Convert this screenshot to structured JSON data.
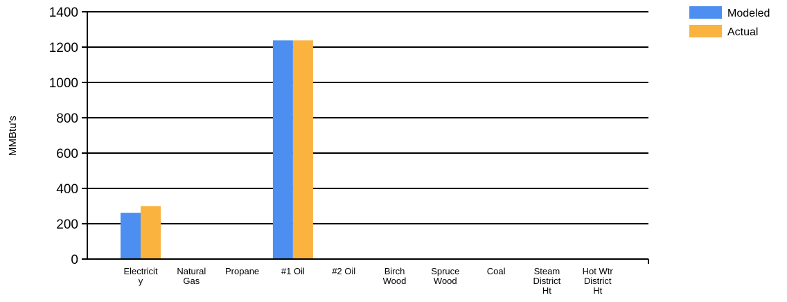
{
  "chart_data": {
    "type": "bar",
    "title": "",
    "xlabel": "",
    "ylabel": "MMBtu's",
    "ylim": [
      0,
      1400
    ],
    "yticks": [
      0,
      200,
      400,
      600,
      800,
      1000,
      1200,
      1400
    ],
    "categories": [
      [
        "Electricit",
        "y"
      ],
      [
        "Natural",
        "Gas"
      ],
      [
        "Propane"
      ],
      [
        "#1 Oil"
      ],
      [
        "#2 Oil"
      ],
      [
        "Birch",
        "Wood"
      ],
      [
        "Spruce",
        "Wood"
      ],
      [
        "Coal"
      ],
      [
        "Steam",
        "District",
        "Ht"
      ],
      [
        "Hot Wtr",
        "District",
        "Ht"
      ]
    ],
    "series": [
      {
        "name": "Modeled",
        "color": "#4c8ff0",
        "values": [
          262,
          0,
          0,
          1238,
          0,
          0,
          0,
          0,
          0,
          0
        ]
      },
      {
        "name": "Actual",
        "color": "#fbb340",
        "values": [
          300,
          0,
          0,
          1238,
          0,
          0,
          0,
          0,
          0,
          0
        ]
      }
    ],
    "grid": true,
    "legend": "top-right"
  }
}
